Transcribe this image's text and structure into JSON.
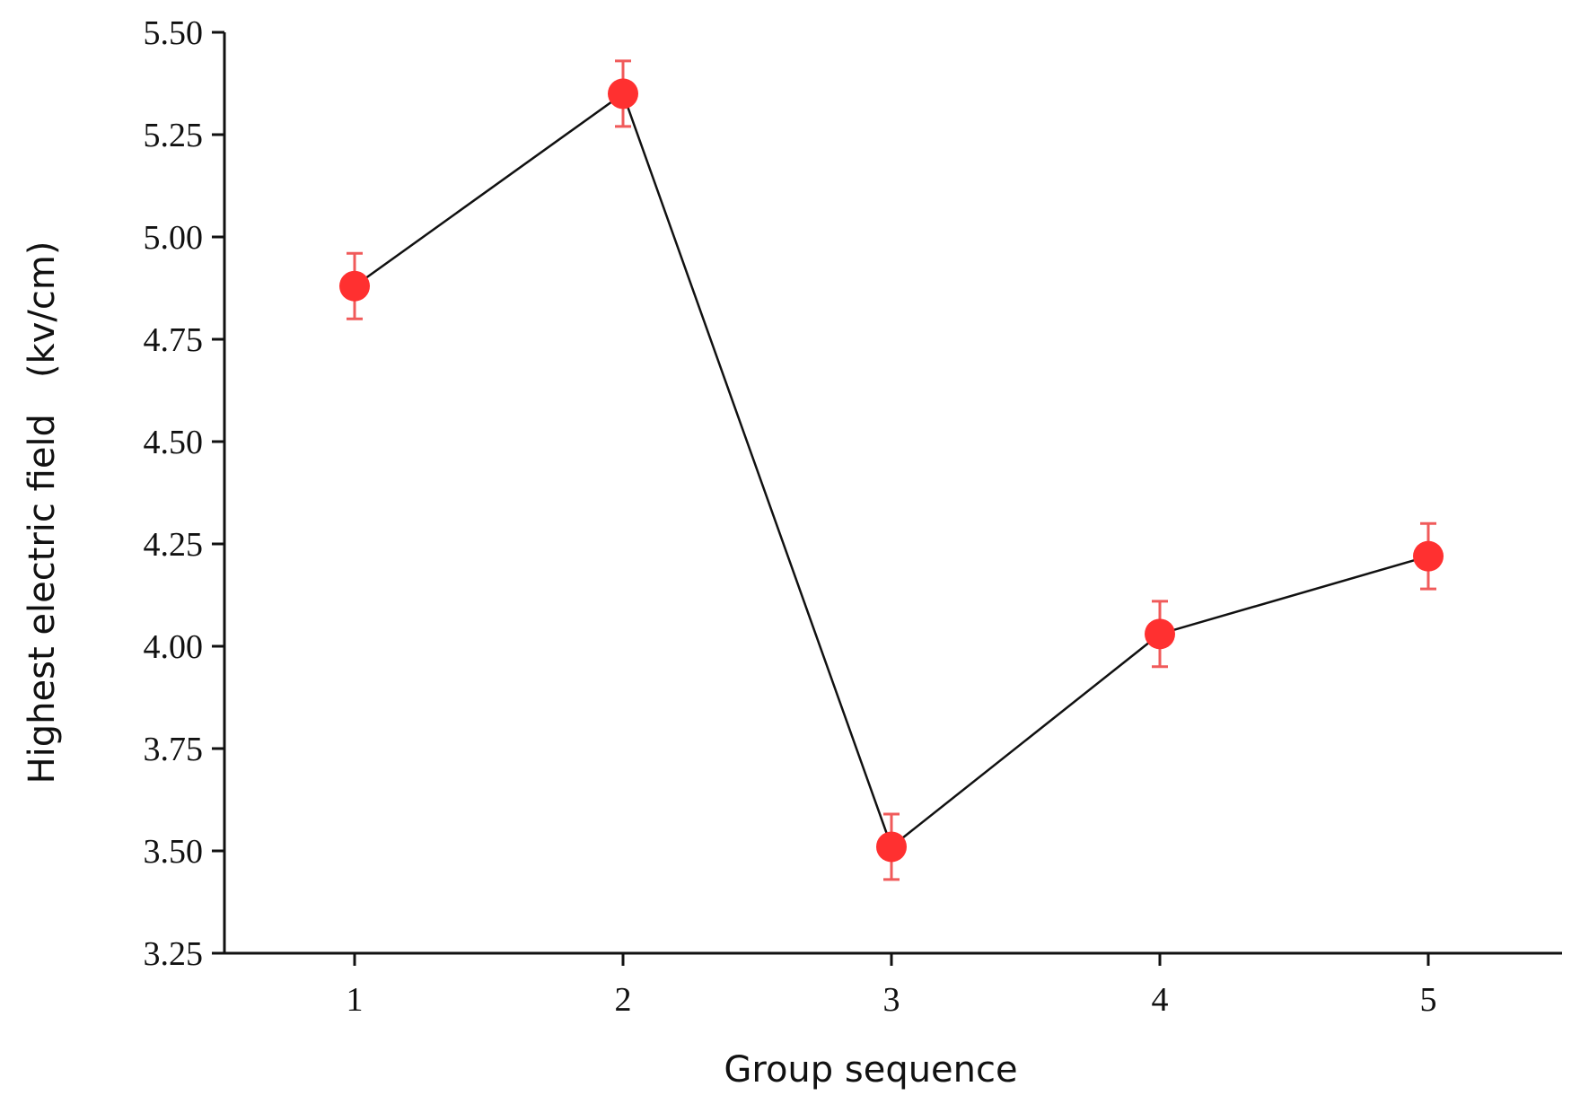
{
  "chart_data": {
    "type": "scatter",
    "title": "",
    "xlabel": "Group sequence",
    "ylabel": "Highest electric field　(kv/cm)",
    "ylim": [
      3.25,
      5.5
    ],
    "xlim": [
      0.0,
      5.5
    ],
    "y_ticks": [
      "3.25",
      "3.50",
      "3.75",
      "4.00",
      "4.25",
      "4.50",
      "4.75",
      "5.00",
      "5.25",
      "5.50"
    ],
    "x_ticks": [
      "1",
      "2",
      "3",
      "4",
      "5"
    ],
    "grid": false,
    "legend": "none",
    "marker_color": "#ff3030",
    "line_color": "#111111",
    "series": [
      {
        "x": [
          1,
          2,
          3,
          4,
          5
        ],
        "values": [
          4.88,
          5.35,
          3.51,
          4.03,
          4.22
        ],
        "error": [
          0.08,
          0.08,
          0.08,
          0.08,
          0.08
        ]
      }
    ]
  }
}
